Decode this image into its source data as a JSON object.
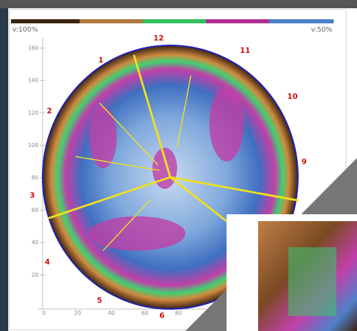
{
  "legend": {
    "left_label": "v:100%",
    "right_label": "v:50%"
  },
  "axes": {
    "y_ticks": [
      160,
      140,
      120,
      100,
      80,
      60,
      40,
      20
    ],
    "x_ticks": [
      0,
      20,
      40,
      60,
      80
    ]
  },
  "sectors": [
    "1",
    "2",
    "3",
    "4",
    "5",
    "6",
    "9",
    "10",
    "11",
    "12"
  ]
}
